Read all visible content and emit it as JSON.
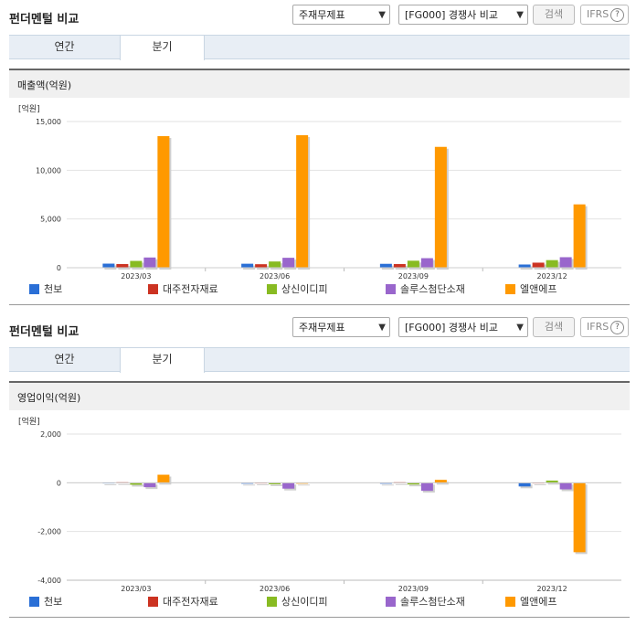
{
  "sections": [
    {
      "title": "펀더멘털 비교",
      "select1": "주재무제표",
      "select2": "[FG000] 경쟁사 비교",
      "search_label": "검색",
      "ifrs_label": "IFRS",
      "tabs": [
        "연간",
        "분기"
      ],
      "active_tab": "분기",
      "chart_title": "매출액(억원)"
    },
    {
      "title": "펀더멘털 비교",
      "select1": "주재무제표",
      "select2": "[FG000] 경쟁사 비교",
      "search_label": "검색",
      "ifrs_label": "IFRS",
      "tabs": [
        "연간",
        "분기"
      ],
      "active_tab": "분기",
      "chart_title": "영업이익(억원)"
    }
  ],
  "colors": {
    "천보": "#2a6fd6",
    "대주전자재료": "#cc3322",
    "상신이디피": "#88bb22",
    "솔루스첨단소재": "#9966cc",
    "엘앤에프": "#ff9900"
  },
  "chart_data": [
    {
      "type": "bar",
      "title": "매출액(억원)",
      "unit_label": "[억원]",
      "categories": [
        "2023/03",
        "2023/06",
        "2023/09",
        "2023/12"
      ],
      "ylim": [
        0,
        15000
      ],
      "yticks": [
        0,
        5000,
        10000,
        15000
      ],
      "ytick_labels": [
        "0",
        "5,000",
        "10,000",
        "15,000"
      ],
      "grid": true,
      "legend": "bottom",
      "series": [
        {
          "name": "천보",
          "values": [
            420,
            410,
            400,
            330
          ]
        },
        {
          "name": "대주전자재료",
          "values": [
            380,
            360,
            380,
            520
          ]
        },
        {
          "name": "상신이디피",
          "values": [
            700,
            640,
            720,
            780
          ]
        },
        {
          "name": "솔루스첨단소재",
          "values": [
            1050,
            1020,
            980,
            1080
          ]
        },
        {
          "name": "엘앤에프",
          "values": [
            13500,
            13600,
            12400,
            6500
          ]
        }
      ]
    },
    {
      "type": "bar",
      "title": "영업이익(억원)",
      "unit_label": "[억원]",
      "categories": [
        "2023/03",
        "2023/06",
        "2023/09",
        "2023/12"
      ],
      "ylim": [
        -4000,
        2000
      ],
      "yticks": [
        -4000,
        -2000,
        0,
        2000
      ],
      "ytick_labels": [
        "-4,000",
        "-2,000",
        "0",
        "2,000"
      ],
      "grid": true,
      "legend": "bottom",
      "series": [
        {
          "name": "천보",
          "values": [
            10,
            -10,
            -10,
            -150
          ]
        },
        {
          "name": "대주전자재료",
          "values": [
            20,
            10,
            20,
            10
          ]
        },
        {
          "name": "상신이디피",
          "values": [
            -80,
            -60,
            -70,
            90
          ]
        },
        {
          "name": "솔루스첨단소재",
          "values": [
            -180,
            -240,
            -330,
            -270
          ]
        },
        {
          "name": "엘앤에프",
          "values": [
            330,
            -10,
            120,
            -2850
          ]
        }
      ]
    }
  ]
}
